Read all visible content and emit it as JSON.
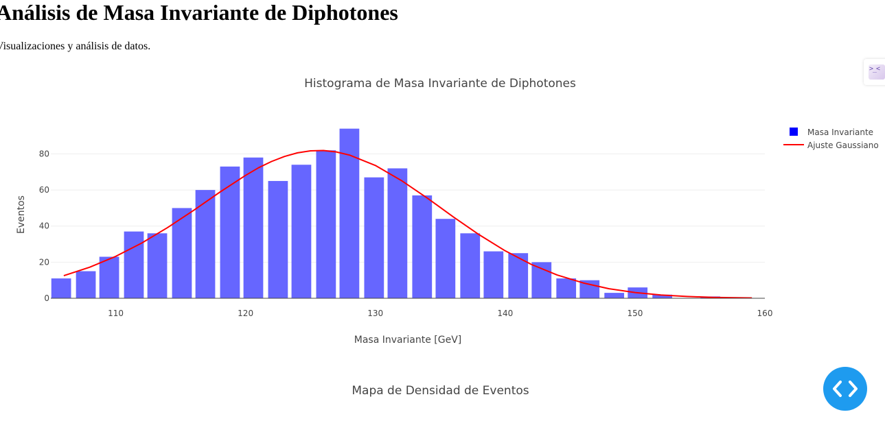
{
  "page": {
    "title": "Análisis de Masa Invariante de Diphotones",
    "subtitle": "Visualizaciones y análisis de datos."
  },
  "chart_data": [
    {
      "type": "bar",
      "title": "Histograma de Masa Invariante de Diphotones",
      "xlabel": "Masa Invariante [GeV]",
      "ylabel": "Eventos",
      "xlim": [
        105,
        160
      ],
      "ylim": [
        0,
        95
      ],
      "xticks": [
        110,
        120,
        130,
        140,
        150,
        160
      ],
      "yticks": [
        0,
        20,
        40,
        60,
        80
      ],
      "grid": true,
      "legend_position": "top-right",
      "bin_centers": [
        105.8,
        107.7,
        109.5,
        111.4,
        113.2,
        115.1,
        116.9,
        118.8,
        120.6,
        122.5,
        124.3,
        126.2,
        128.0,
        129.9,
        131.7,
        133.6,
        135.4,
        137.3,
        139.1,
        141.0,
        142.8,
        144.7,
        146.5,
        148.4,
        150.2,
        152.1,
        153.9,
        155.8,
        157.6
      ],
      "series": [
        {
          "name": "Masa Invariante",
          "kind": "bar",
          "color": "#6666ff",
          "legend_color": "#0000ff",
          "values": [
            11,
            15,
            23,
            37,
            36,
            50,
            60,
            73,
            78,
            65,
            74,
            82,
            94,
            67,
            72,
            57,
            44,
            36,
            26,
            25,
            20,
            11,
            10,
            3,
            6,
            2,
            0,
            1,
            0
          ]
        },
        {
          "name": "Ajuste Gaussiano",
          "kind": "line",
          "color": "#ff0000",
          "x": [
            106,
            108,
            110,
            112,
            114,
            116,
            118,
            120,
            121,
            122,
            123,
            124,
            125,
            126,
            127,
            128,
            130,
            132,
            134,
            136,
            138,
            140,
            142,
            144,
            146,
            148,
            150,
            152,
            154,
            156,
            159
          ],
          "values": [
            12.5,
            17.2,
            23.2,
            30.6,
            39.2,
            48.7,
            58.7,
            68.1,
            72.3,
            75.8,
            78.6,
            80.6,
            81.7,
            81.9,
            81.1,
            79.4,
            73.6,
            65.3,
            55.5,
            45.1,
            35.2,
            26.3,
            18.8,
            12.9,
            8.5,
            5.3,
            3.2,
            1.8,
            1.0,
            0.5,
            0.2
          ]
        }
      ]
    },
    {
      "type": "heatmap",
      "title": "Mapa de Densidad de Eventos"
    }
  ],
  "toolbar": {
    "mode_icon": "terminal-sparkle-icon",
    "fab_icon": "code-brackets-icon"
  }
}
